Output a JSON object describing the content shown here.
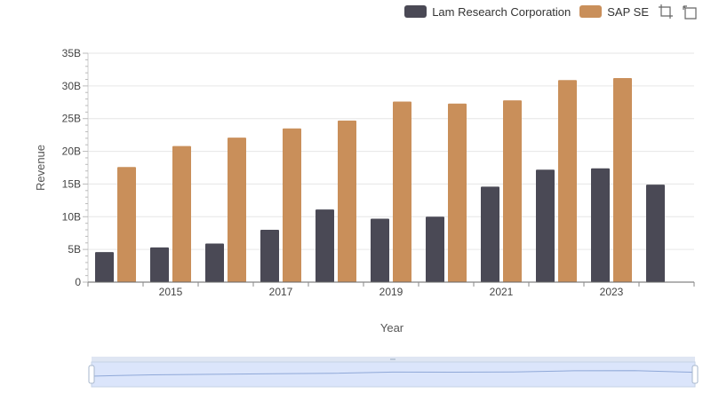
{
  "chart_data": {
    "type": "bar",
    "title": "",
    "xlabel": "Year",
    "ylabel": "Revenue",
    "ylim": [
      0,
      35
    ],
    "y_unit": "B",
    "yticks": [
      "0",
      "5B",
      "10B",
      "15B",
      "20B",
      "25B",
      "30B",
      "35B"
    ],
    "x": [
      2014,
      2015,
      2016,
      2017,
      2018,
      2019,
      2020,
      2021,
      2022,
      2023,
      2024
    ],
    "xticks": [
      "2015",
      "2017",
      "2019",
      "2021",
      "2023"
    ],
    "grid": true,
    "legend_position": "top-right",
    "series": [
      {
        "name": "Lam Research Corporation",
        "color": "#4a4955",
        "values": [
          4.6,
          5.3,
          5.9,
          8.0,
          11.1,
          9.7,
          10.0,
          14.6,
          17.2,
          17.4,
          14.9
        ]
      },
      {
        "name": "SAP SE",
        "color": "#c98f5a",
        "values": [
          17.6,
          20.8,
          22.1,
          23.5,
          24.7,
          27.6,
          27.3,
          27.8,
          30.9,
          31.2,
          null
        ]
      }
    ]
  },
  "toolbar": {
    "zoom_icon": "zoom-select-icon",
    "reset_icon": "zoom-reset-icon"
  },
  "datazoom": {
    "handle_color": "#a7b7cc",
    "fill_color": "#dbe5fb",
    "line_color": "#8fa8d8"
  }
}
